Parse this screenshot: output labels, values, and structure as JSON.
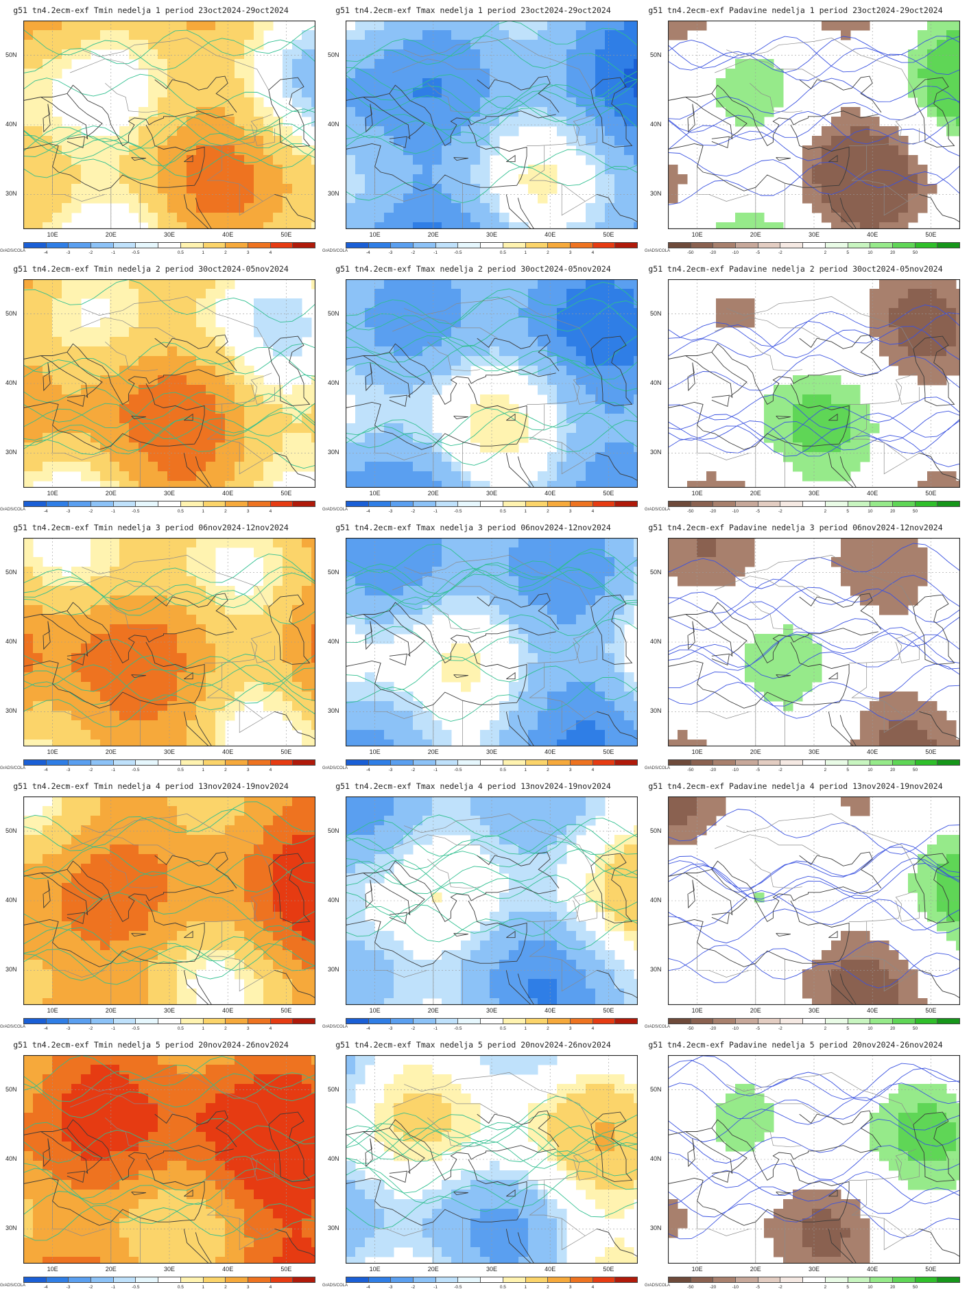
{
  "credit": "GrADS/COLA",
  "lat_labels": [
    "50N",
    "40N",
    "30N"
  ],
  "lon_labels": [
    "10E",
    "20E",
    "30E",
    "40E",
    "50E"
  ],
  "legends": {
    "temp": {
      "ticks": [
        "-4",
        "-3",
        "-2",
        "-1",
        "-0.5",
        "0.5",
        "1",
        "2",
        "3",
        "4"
      ],
      "colors": [
        "#1a5fd6",
        "#2f7ee6",
        "#5a9ff0",
        "#8cc2f7",
        "#bfe1fb",
        "#e6f7fd",
        "#ffffff",
        "#fff3b0",
        "#fbd46a",
        "#f6a93b",
        "#ee7320",
        "#e63b12",
        "#b01a0a"
      ]
    },
    "precip": {
      "ticks": [
        "-50",
        "-20",
        "-10",
        "-5",
        "-2",
        "2",
        "5",
        "10",
        "20",
        "50"
      ],
      "colors": [
        "#6e4a3a",
        "#8a6150",
        "#a8806d",
        "#c7a89a",
        "#e3cdc2",
        "#f5e9e3",
        "#ffffff",
        "#e9fbe6",
        "#c8f5c0",
        "#96ea8a",
        "#5fd656",
        "#2fbf2a",
        "#16961a"
      ]
    }
  },
  "rows": [
    {
      "week": 1,
      "panels": [
        {
          "title": "g51 tn4.2ecm-exf Tmin nedelja 1 period 23oct2024-29oct2024",
          "variable": "Tmin",
          "legend": "temp"
        },
        {
          "title": "g51 tn4.2ecm-exf Tmax nedelja 1 period 23oct2024-29oct2024",
          "variable": "Tmax",
          "legend": "temp"
        },
        {
          "title": "g51 tn4.2ecm-exf Padavine nedelja 1 period 23oct2024-29oct2024",
          "variable": "Padavine",
          "legend": "precip"
        }
      ]
    },
    {
      "week": 2,
      "panels": [
        {
          "title": "g51 tn4.2ecm-exf Tmin nedelja 2 period 30oct2024-05nov2024",
          "variable": "Tmin",
          "legend": "temp"
        },
        {
          "title": "g51 tn4.2ecm-exf Tmax nedelja 2 period 30oct2024-05nov2024",
          "variable": "Tmax",
          "legend": "temp"
        },
        {
          "title": "g51 tn4.2ecm-exf Padavine nedelja 2 period 30oct2024-05nov2024",
          "variable": "Padavine",
          "legend": "precip"
        }
      ]
    },
    {
      "week": 3,
      "panels": [
        {
          "title": "g51 tn4.2ecm-exf Tmin nedelja 3 period 06nov2024-12nov2024",
          "variable": "Tmin",
          "legend": "temp"
        },
        {
          "title": "g51 tn4.2ecm-exf Tmax nedelja 3 period 06nov2024-12nov2024",
          "variable": "Tmax",
          "legend": "temp"
        },
        {
          "title": "g51 tn4.2ecm-exf Padavine nedelja 3 period 06nov2024-12nov2024",
          "variable": "Padavine",
          "legend": "precip"
        }
      ]
    },
    {
      "week": 4,
      "panels": [
        {
          "title": "g51 tn4.2ecm-exf Tmin nedelja 4 period 13nov2024-19nov2024",
          "variable": "Tmin",
          "legend": "temp"
        },
        {
          "title": "g51 tn4.2ecm-exf Tmax nedelja 4 period 13nov2024-19nov2024",
          "variable": "Tmax",
          "legend": "temp"
        },
        {
          "title": "g51 tn4.2ecm-exf Padavine nedelja 4 period 13nov2024-19nov2024",
          "variable": "Padavine",
          "legend": "precip"
        }
      ]
    },
    {
      "week": 5,
      "panels": [
        {
          "title": "g51 tn4.2ecm-exf Tmin nedelja 5 period 20nov2024-26nov2024",
          "variable": "Tmin",
          "legend": "temp"
        },
        {
          "title": "g51 tn4.2ecm-exf Tmax nedelja 5 period 20nov2024-26nov2024",
          "variable": "Tmax",
          "legend": "temp"
        },
        {
          "title": "g51 tn4.2ecm-exf Padavine nedelja 5 period 20nov2024-26nov2024",
          "variable": "Padavine",
          "legend": "precip"
        }
      ]
    }
  ]
}
